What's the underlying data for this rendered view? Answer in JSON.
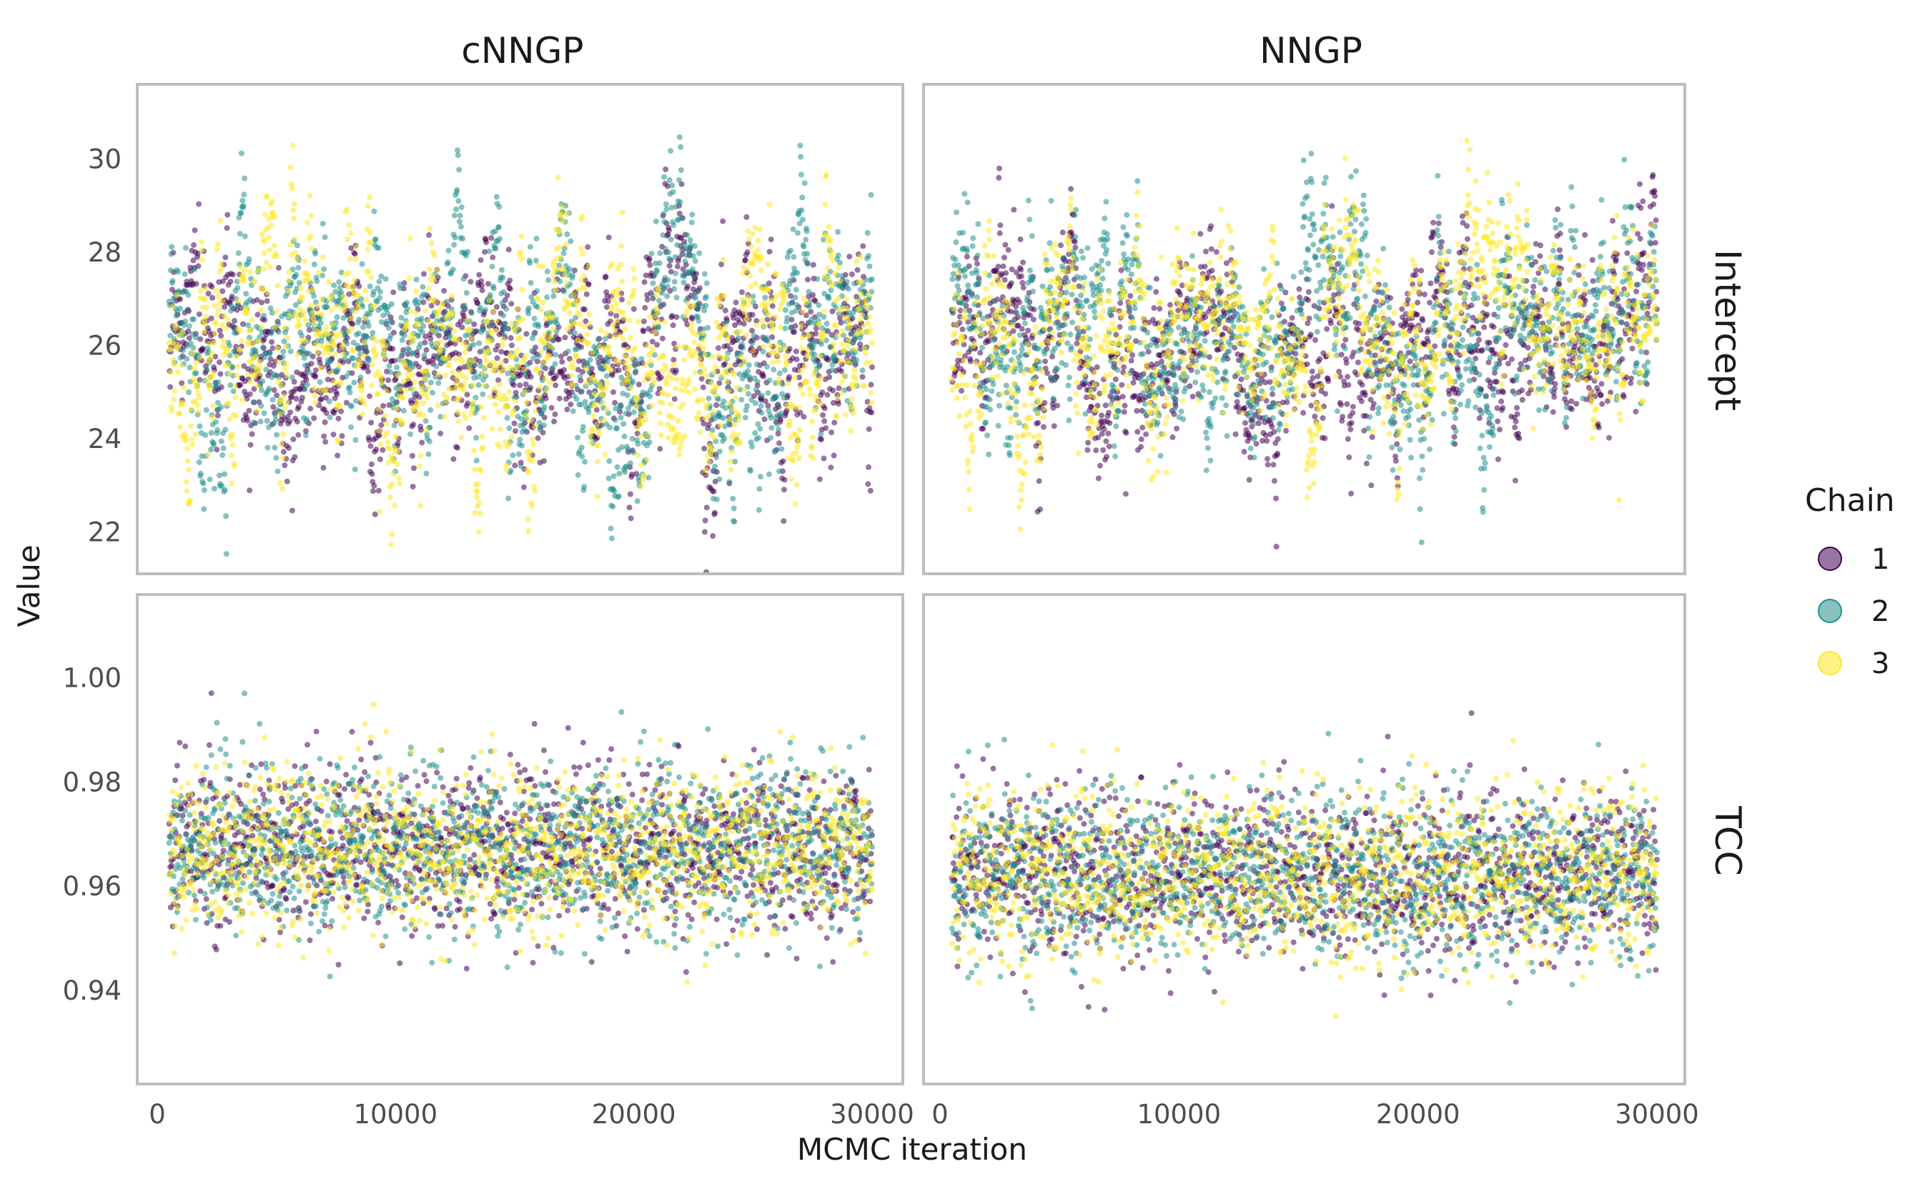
{
  "chart_data": {
    "type": "scatter",
    "title": "",
    "xlabel": "MCMC iteration",
    "ylabel": "Value",
    "facet_columns": [
      "cNNGP",
      "NNGP"
    ],
    "facet_rows": [
      "Intercept",
      "TCC"
    ],
    "x_ticks": [
      "0",
      "10000",
      "20000",
      "30000"
    ],
    "x_range": [
      0,
      30000
    ],
    "grid": false,
    "legend": {
      "title": "Chain",
      "placement": "right",
      "entries": [
        "1",
        "2",
        "3"
      ]
    },
    "colors": {
      "1": "#440154",
      "2": "#21908C",
      "3": "#FDE725"
    },
    "point_alpha": 0.55,
    "rows": {
      "Intercept": {
        "ylim": [
          21.1,
          31.6
        ],
        "y_ticks": [
          "22",
          "24",
          "26",
          "28",
          "30"
        ],
        "center": 26.0,
        "sd": 1.0
      },
      "TCC": {
        "ylim": [
          0.922,
          1.016
        ],
        "y_ticks": [
          "0.94",
          "0.96",
          "0.98",
          "1.00"
        ],
        "center_cNNGP": 0.967,
        "center_NNGP": 0.962,
        "sd": 0.008
      }
    },
    "series": [
      {
        "name": "1",
        "x_start": 500,
        "x_end": 30000
      },
      {
        "name": "2",
        "x_start": 500,
        "x_end": 30000
      },
      {
        "name": "3",
        "x_start": 500,
        "x_end": 30000
      }
    ]
  }
}
